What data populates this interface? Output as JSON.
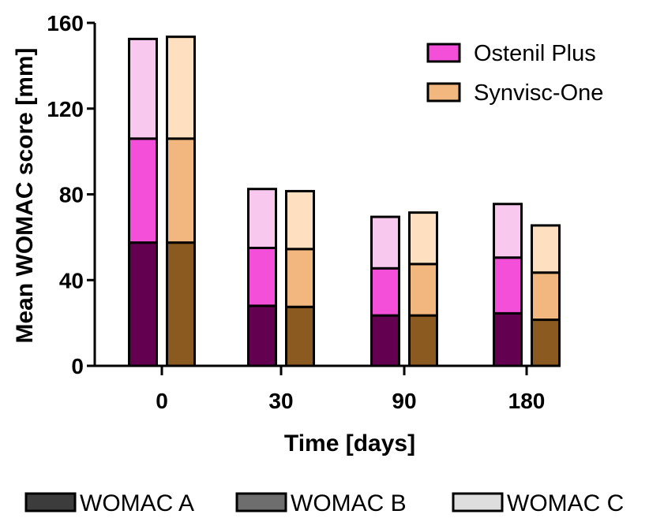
{
  "chart_data": {
    "type": "bar",
    "stacked": true,
    "categories": [
      "0",
      "30",
      "90",
      "180"
    ],
    "xlabel": "Time [days]",
    "ylabel": "Mean WOMAC score [mm]",
    "ylim": [
      0,
      160
    ],
    "yticks": [
      "0",
      "40",
      "80",
      "120",
      "160"
    ],
    "grid": false,
    "groups": [
      {
        "name": "Ostenil Plus",
        "colors": [
          "#630050",
          "#f44fd8",
          "#f8c8ef"
        ],
        "segments": [
          {
            "name": "WOMAC A",
            "values": [
              57.5,
              28,
              23.5,
              24.5
            ]
          },
          {
            "name": "WOMAC B",
            "values": [
              48.5,
              27,
              22,
              26
            ]
          },
          {
            "name": "WOMAC C",
            "values": [
              46.5,
              27.5,
              24,
              25
            ]
          }
        ]
      },
      {
        "name": "Synvisc-One",
        "colors": [
          "#8b5a21",
          "#f1b77e",
          "#fee0c0"
        ],
        "segments": [
          {
            "name": "WOMAC A",
            "values": [
              57.5,
              27.5,
              23.5,
              21.5
            ]
          },
          {
            "name": "WOMAC B",
            "values": [
              48.5,
              27,
              24,
              22
            ]
          },
          {
            "name": "WOMAC C",
            "values": [
              47.5,
              27,
              24,
              22
            ]
          }
        ]
      }
    ],
    "legend_groups": {
      "placement": "top-right",
      "entries": [
        {
          "label": "Ostenil Plus",
          "color": "#f44fd8"
        },
        {
          "label": "Synvisc-One",
          "color": "#f1b77e"
        }
      ]
    },
    "legend_components": {
      "placement": "bottom",
      "entries": [
        {
          "label": "WOMAC A",
          "color": "#3c3c3c"
        },
        {
          "label": "WOMAC B",
          "color": "#6e6e6e"
        },
        {
          "label": "WOMAC C",
          "color": "#dedede"
        }
      ]
    }
  }
}
